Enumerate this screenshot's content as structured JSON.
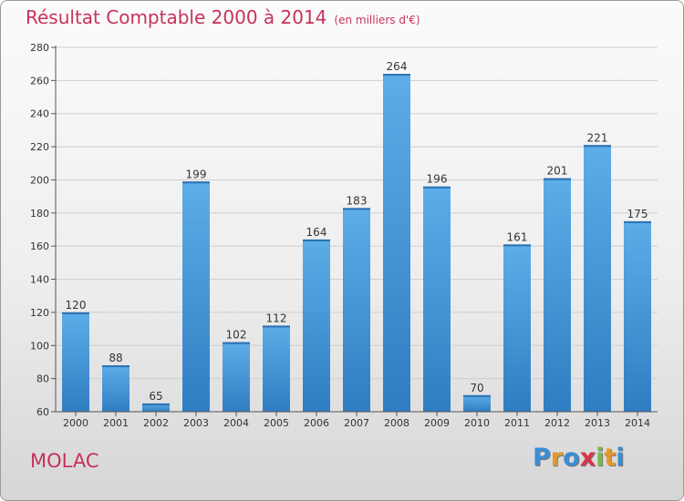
{
  "title": "Résultat Comptable 2000 à 2014",
  "subtitle": "(en milliers d'€)",
  "town": "MOLAC",
  "logo": {
    "letters": [
      "P",
      "r",
      "o",
      "x",
      "i",
      "t",
      "i"
    ],
    "colors": [
      "#3a8dd6",
      "#e39a2c",
      "#3a8dd6",
      "#d8354b",
      "#78b94a",
      "#e39a2c",
      "#3a8dd6"
    ]
  },
  "colors": {
    "bar_light": "#5dade8",
    "bar_dark": "#2f7dc2",
    "title": "#c8325a"
  },
  "chart_data": {
    "type": "bar",
    "title": "Résultat Comptable 2000 à 2014",
    "subtitle": "(en milliers d'€)",
    "xlabel": "",
    "ylabel": "",
    "categories": [
      "2000",
      "2001",
      "2002",
      "2003",
      "2004",
      "2005",
      "2006",
      "2007",
      "2008",
      "2009",
      "2010",
      "2011",
      "2012",
      "2013",
      "2014"
    ],
    "values": [
      120,
      88,
      65,
      199,
      102,
      112,
      164,
      183,
      264,
      196,
      70,
      161,
      201,
      221,
      175
    ],
    "ylim": [
      60,
      280
    ],
    "yticks": [
      60,
      80,
      100,
      120,
      140,
      160,
      180,
      200,
      220,
      240,
      260,
      280
    ],
    "grid": true
  }
}
